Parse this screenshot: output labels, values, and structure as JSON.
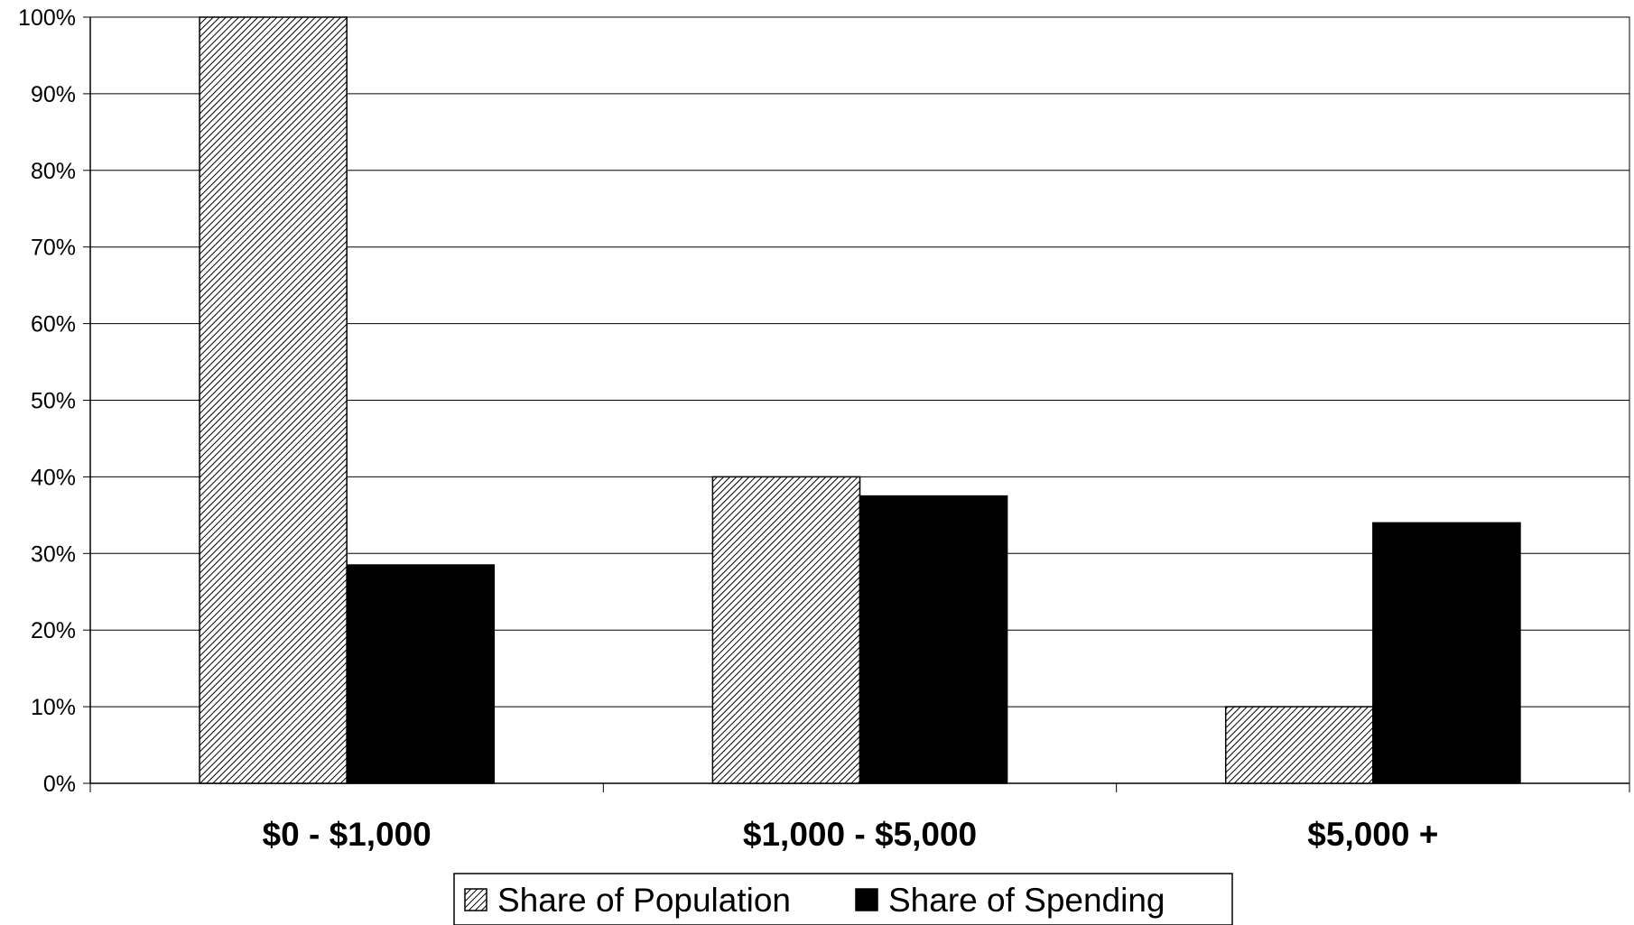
{
  "chart_data": {
    "type": "bar",
    "title": "",
    "xlabel": "",
    "ylabel": "",
    "categories": [
      "$0 - $1,000",
      "$1,000 - $5,000",
      "$5,000 +"
    ],
    "series": [
      {
        "name": "Share of Population",
        "values": [
          100,
          40,
          10
        ],
        "fill": "hatch",
        "color": "#000000"
      },
      {
        "name": "Share of Spending",
        "values": [
          28.5,
          37.5,
          34
        ],
        "fill": "solid",
        "color": "#000000"
      }
    ],
    "ylim": [
      0,
      100
    ],
    "yticks": [
      "0%",
      "10%",
      "20%",
      "30%",
      "40%",
      "50%",
      "60%",
      "70%",
      "80%",
      "90%",
      "100%"
    ],
    "grid": true,
    "legend_position": "bottom-center"
  }
}
